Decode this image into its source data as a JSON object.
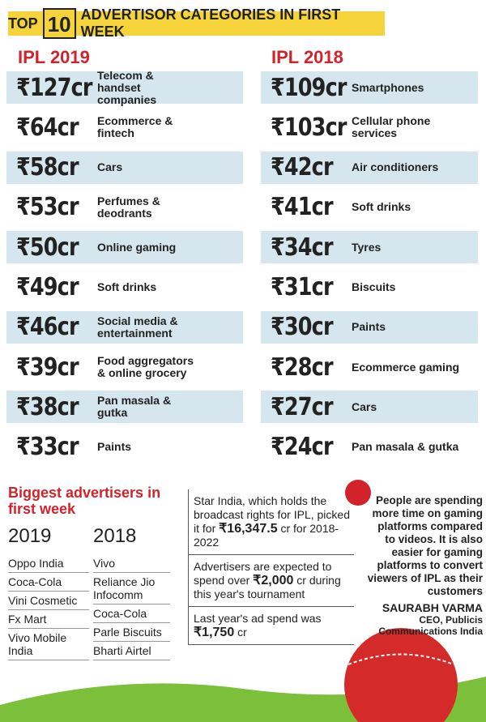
{
  "header": {
    "pre": "TOP",
    "number": "10",
    "title": "ADVERTISOR CATEGORIES IN FIRST WEEK"
  },
  "ipl2019": {
    "title": "IPL 2019",
    "items": [
      {
        "amount": "₹127cr",
        "label": "Telecom & handset companies"
      },
      {
        "amount": "₹64cr",
        "label": "Ecommerce & fintech"
      },
      {
        "amount": "₹58cr",
        "label": "Cars"
      },
      {
        "amount": "₹53cr",
        "label": "Perfumes & deodrants"
      },
      {
        "amount": "₹50cr",
        "label": "Online gaming"
      },
      {
        "amount": "₹49cr",
        "label": "Soft drinks"
      },
      {
        "amount": "₹46cr",
        "label": "Social media & entertainment"
      },
      {
        "amount": "₹39cr",
        "label": "Food aggregators & online grocery"
      },
      {
        "amount": "₹38cr",
        "label": "Pan masala & gutka"
      },
      {
        "amount": "₹33cr",
        "label": "Paints"
      }
    ]
  },
  "ipl2018": {
    "title": "IPL 2018",
    "items": [
      {
        "amount": "₹109cr",
        "label": "Smartphones"
      },
      {
        "amount": "₹103cr",
        "label": "Cellular phone services"
      },
      {
        "amount": "₹42cr",
        "label": "Air conditioners"
      },
      {
        "amount": "₹41cr",
        "label": "Soft drinks"
      },
      {
        "amount": "₹34cr",
        "label": "Tyres"
      },
      {
        "amount": "₹31cr",
        "label": "Biscuits"
      },
      {
        "amount": "₹30cr",
        "label": "Paints"
      },
      {
        "amount": "₹28cr",
        "label": "Ecommerce gaming"
      },
      {
        "amount": "₹27cr",
        "label": "Cars"
      },
      {
        "amount": "₹24cr",
        "label": "Pan masala & gutka"
      }
    ]
  },
  "advertisers": {
    "title": "Biggest advertisers in first week",
    "columns": [
      {
        "year": "2019",
        "names": [
          "Oppo India",
          "Coca-Cola",
          "Vini Cosmetic",
          "Fx Mart",
          "Vivo Mobile India"
        ]
      },
      {
        "year": "2018",
        "names": [
          "Vivo",
          "Reliance Jio Infocomm",
          "Coca-Cola",
          "Parle Biscuits",
          "Bharti Airtel"
        ]
      }
    ]
  },
  "facts": [
    {
      "pre": "Star India, which holds the broadcast rights for IPL, picked it for ",
      "amount": "₹16,347.5",
      "post": " cr for 2018-2022"
    },
    {
      "pre": "Advertisers are expected to spend over ",
      "amount": "₹2,000",
      "post": " cr during this year's tournament"
    },
    {
      "pre": "Last year's ad spend was ",
      "amount": "₹1,750",
      "post": " cr"
    }
  ],
  "quote": {
    "text": "People are spending more time on gaming platforms compared to videos. It is also easier for gaming platforms to convert viewers of IPL as their customers",
    "name": "SAURABH VARMA",
    "role": "CEO, Publicis Communications India"
  }
}
